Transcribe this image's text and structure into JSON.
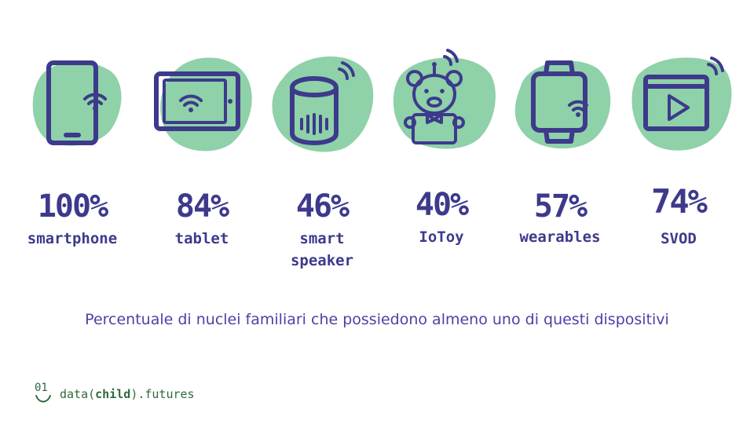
{
  "items": [
    {
      "percent": "100%",
      "label": "smartphone",
      "icon": "smartphone-icon"
    },
    {
      "percent": "84%",
      "label": "tablet",
      "icon": "tablet-icon"
    },
    {
      "percent": "46%",
      "label_line1": "smart",
      "label_line2": "speaker",
      "icon": "smart-speaker-icon"
    },
    {
      "percent": "40%",
      "label": "IoToy",
      "icon": "teddy-bear-icon"
    },
    {
      "percent": "57%",
      "label": "wearables",
      "icon": "smartwatch-icon"
    },
    {
      "percent": "74%",
      "label": "SVOD",
      "icon": "video-player-icon"
    }
  ],
  "caption": "Percentuale di nuclei familiari che possiedono almeno uno di questi dispositivi",
  "logo": {
    "number": "01",
    "text_before": "data(",
    "text_bold": "child",
    "text_after": ").futures"
  },
  "colors": {
    "primary": "#3d3a8c",
    "blob": "#8fd1a8",
    "caption": "#4a43a6",
    "logo": "#2e6a3c"
  }
}
